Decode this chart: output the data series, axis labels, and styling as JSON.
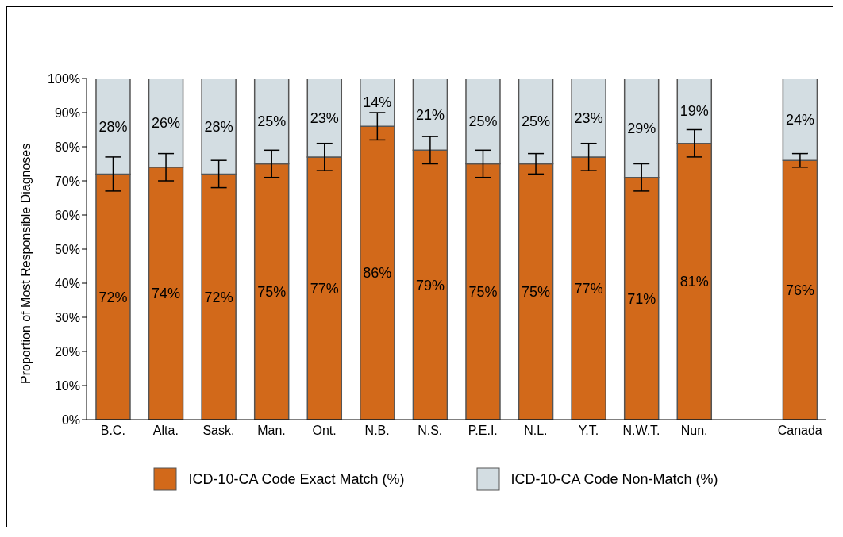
{
  "chart_data": {
    "type": "bar",
    "stacked": true,
    "ylabel": "Proportion of Most Responsible Diagnoses",
    "categories": [
      "B.C.",
      "Alta.",
      "Sask.",
      "Man.",
      "Ont.",
      "N.B.",
      "N.S.",
      "P.E.I.",
      "N.L.",
      "Y.T.",
      "N.W.T.",
      "Nun.",
      null,
      "Canada"
    ],
    "series": [
      {
        "name": "ICD-10-CA Code Exact Match (%)",
        "color": "#d2691a",
        "values": [
          72,
          74,
          72,
          75,
          77,
          86,
          79,
          75,
          75,
          77,
          71,
          81,
          null,
          76
        ],
        "value_labels": [
          "72%",
          "74%",
          "72%",
          "75%",
          "77%",
          "86%",
          "79%",
          "75%",
          "75%",
          "77%",
          "71%",
          "81%",
          null,
          "76%"
        ],
        "errors": [
          [
            67,
            77
          ],
          [
            70,
            78
          ],
          [
            68,
            76
          ],
          [
            71,
            79
          ],
          [
            73,
            81
          ],
          [
            82,
            90
          ],
          [
            75,
            83
          ],
          [
            71,
            79
          ],
          [
            72,
            78
          ],
          [
            73,
            81
          ],
          [
            67,
            75
          ],
          [
            77,
            85
          ],
          null,
          [
            74,
            78
          ]
        ]
      },
      {
        "name": "ICD-10-CA Code Non-Match (%)",
        "color": "#d3dde2",
        "values": [
          28,
          26,
          28,
          25,
          23,
          14,
          21,
          25,
          25,
          23,
          29,
          19,
          null,
          24
        ],
        "value_labels": [
          "28%",
          "26%",
          "28%",
          "25%",
          "23%",
          "14%",
          "21%",
          "25%",
          "25%",
          "23%",
          "29%",
          "19%",
          null,
          "24%"
        ]
      }
    ],
    "ylim": [
      0,
      100
    ],
    "yticks": [
      {
        "value": 0,
        "label": "0%"
      },
      {
        "value": 10,
        "label": "10%"
      },
      {
        "value": 20,
        "label": "20%"
      },
      {
        "value": 30,
        "label": "30%"
      },
      {
        "value": 40,
        "label": "40%"
      },
      {
        "value": 50,
        "label": "50%"
      },
      {
        "value": 60,
        "label": "60%"
      },
      {
        "value": 70,
        "label": "70%"
      },
      {
        "value": 80,
        "label": "80%"
      },
      {
        "value": 90,
        "label": "90%"
      },
      {
        "value": 100,
        "label": "100%"
      }
    ],
    "grid": false,
    "legend": "bottom"
  }
}
